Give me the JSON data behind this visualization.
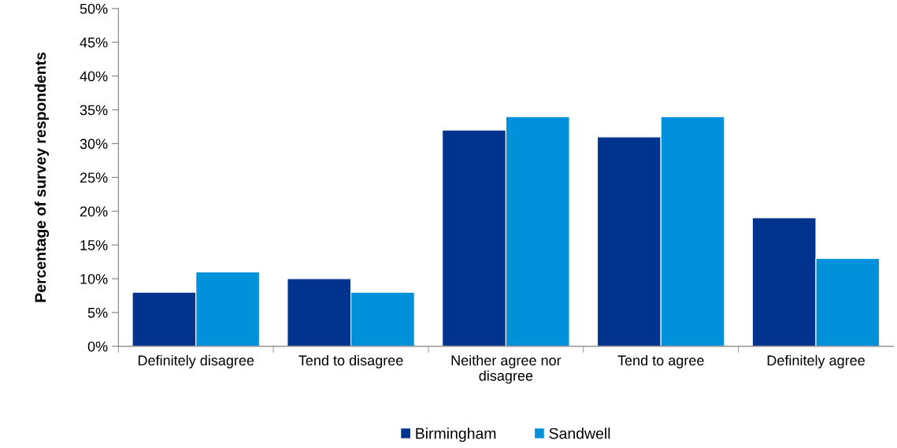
{
  "chart_data": {
    "type": "bar",
    "ylabel": "Percentage of survey respondents",
    "categories": [
      "Definitely disagree",
      "Tend to disagree",
      "Neither agree nor\ndisagree",
      "Tend to agree",
      "Definitely agree"
    ],
    "series": [
      {
        "name": "Birmingham",
        "color": "#00338d",
        "values": [
          8,
          10,
          32,
          31,
          19
        ]
      },
      {
        "name": "Sandwell",
        "color": "#0091da",
        "values": [
          11,
          8,
          34,
          34,
          13
        ]
      }
    ],
    "ylim": [
      0,
      50
    ],
    "yticks": [
      {
        "value": 0,
        "label": "0%"
      },
      {
        "value": 5,
        "label": "5%"
      },
      {
        "value": 10,
        "label": "10%"
      },
      {
        "value": 15,
        "label": "15%"
      },
      {
        "value": 20,
        "label": "20%"
      },
      {
        "value": 25,
        "label": "25%"
      },
      {
        "value": 30,
        "label": "30%"
      },
      {
        "value": 35,
        "label": "35%"
      },
      {
        "value": 40,
        "label": "40%"
      },
      {
        "value": 45,
        "label": "45%"
      },
      {
        "value": 50,
        "label": "50%"
      }
    ],
    "grid": false,
    "legend": "bottom"
  }
}
